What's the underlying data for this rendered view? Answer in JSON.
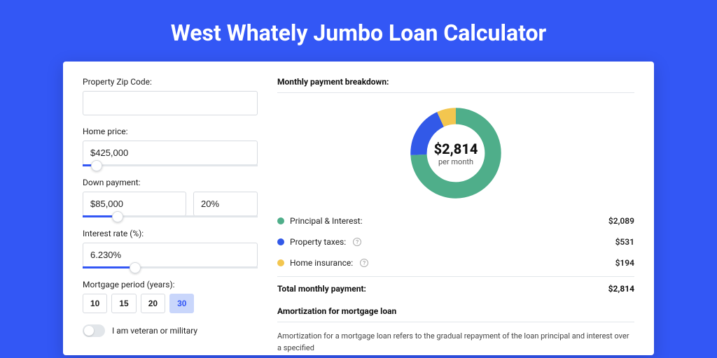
{
  "title": "West Whately Jumbo Loan Calculator",
  "colors": {
    "accent": "#3357f5",
    "green": "#4fae8a",
    "blue": "#3259e8",
    "yellow": "#f3c64f"
  },
  "form": {
    "zip": {
      "label": "Property Zip Code:",
      "value": ""
    },
    "homePrice": {
      "label": "Home price:",
      "value": "$425,000",
      "sliderPct": 8
    },
    "downPayment": {
      "label": "Down payment:",
      "amount": "$85,000",
      "pct": "20%",
      "sliderPct": 20
    },
    "interest": {
      "label": "Interest rate (%):",
      "value": "6.230%",
      "sliderPct": 30
    },
    "period": {
      "label": "Mortgage period (years):",
      "options": [
        "10",
        "15",
        "20",
        "30"
      ],
      "active": "30"
    },
    "veteran": {
      "label": "I am veteran or military",
      "on": false
    }
  },
  "breakdown": {
    "title": "Monthly payment breakdown:",
    "centerAmount": "$2,814",
    "centerSub": "per month",
    "items": [
      {
        "label": "Principal & Interest:",
        "value": "$2,089",
        "share": 0.742,
        "colorKey": "green",
        "info": false
      },
      {
        "label": "Property taxes:",
        "value": "$531",
        "share": 0.189,
        "colorKey": "blue",
        "info": true
      },
      {
        "label": "Home insurance:",
        "value": "$194",
        "share": 0.069,
        "colorKey": "yellow",
        "info": true
      }
    ],
    "totalLabel": "Total monthly payment:",
    "totalValue": "$2,814"
  },
  "amortization": {
    "title": "Amortization for mortgage loan",
    "text": "Amortization for a mortgage loan refers to the gradual repayment of the loan principal and interest over a specified"
  }
}
